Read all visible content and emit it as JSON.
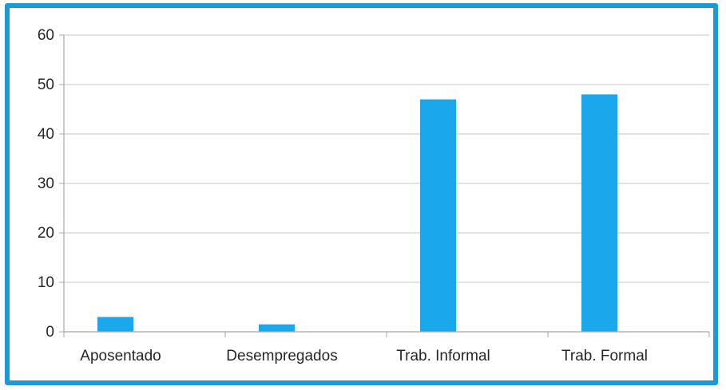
{
  "chart_data": {
    "type": "bar",
    "title": "",
    "xlabel": "",
    "ylabel": "",
    "categories": [
      "Aposentado",
      "Desempregados",
      "Trab. Informal",
      "Trab. Formal"
    ],
    "values": [
      3,
      1.5,
      47,
      48
    ],
    "ylim": [
      0,
      60
    ],
    "yticks": [
      0,
      10,
      20,
      30,
      40,
      50,
      60
    ],
    "grid": true,
    "legend": "none",
    "bar_color": "#1aa7ec",
    "frame_color": "#1c9ad6"
  }
}
